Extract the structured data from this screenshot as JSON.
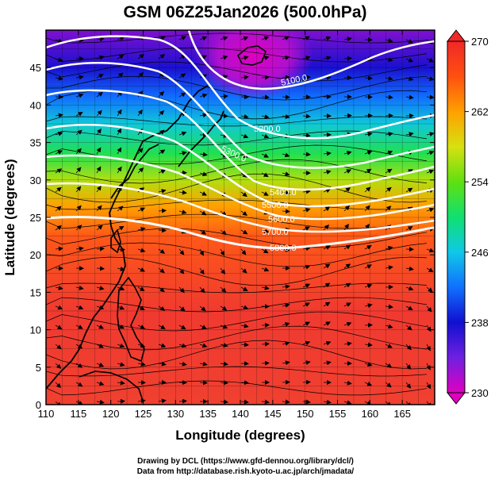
{
  "title": "GSM 06Z25Jan2026 (500.0hPa)",
  "x_axis": {
    "label": "Longitude (degrees)",
    "min": 110,
    "max": 170,
    "ticks": [
      "110",
      "115",
      "120",
      "125",
      "130",
      "135",
      "140",
      "145",
      "150",
      "155",
      "160",
      "165"
    ]
  },
  "y_axis": {
    "label": "Latitude  (degrees)",
    "min": 0,
    "max": 50,
    "ticks": [
      "0",
      "5",
      "10",
      "15",
      "20",
      "25",
      "30",
      "35",
      "40",
      "45"
    ]
  },
  "colorbar": {
    "min": 230,
    "max": 270,
    "ticks": [
      "230",
      "238",
      "246",
      "254",
      "262",
      "270"
    ],
    "colors": [
      "#e000c0",
      "#7020e0",
      "#1010d0",
      "#1070ff",
      "#10c8e8",
      "#10e070",
      "#60e010",
      "#d8e010",
      "#ffa000",
      "#ff5010",
      "#ff3030",
      "#f02828"
    ]
  },
  "contours": [
    {
      "value": "5100.0",
      "label": "5100.0"
    },
    {
      "value": "5200.0",
      "label": "5200.0"
    },
    {
      "value": "5300.0",
      "label": "5300.0"
    },
    {
      "value": "5400.0",
      "label": "5400.0"
    },
    {
      "value": "5500.0",
      "label": "5500.0"
    },
    {
      "value": "5600.0",
      "label": "5600.0"
    },
    {
      "value": "5700.0",
      "label": "5700.0"
    },
    {
      "value": "5800.0",
      "label": "5800.0"
    }
  ],
  "credits": [
    "Drawing by DCL (https://www.gfd-dennou.org/library/dcl/)",
    "Data from http://database.rish.kyoto-u.ac.jp/arch/jmadata/"
  ]
}
